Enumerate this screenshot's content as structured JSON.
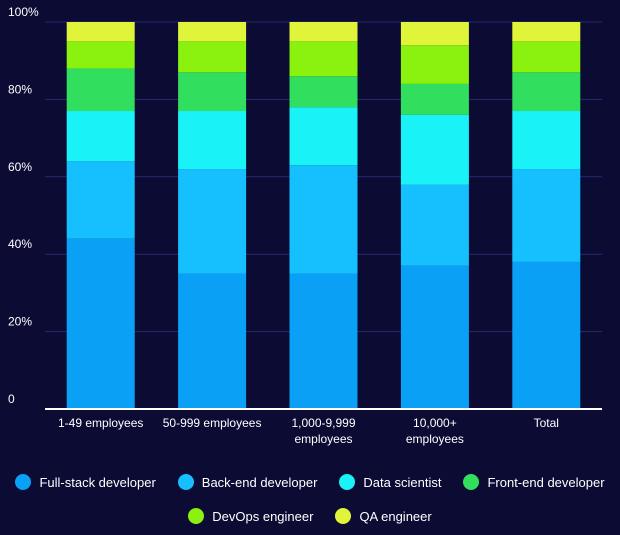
{
  "chart_data": {
    "type": "bar",
    "stacked": true,
    "categories": [
      [
        "1-49 employees"
      ],
      [
        "50-999 employees"
      ],
      [
        "1,000-9,999",
        "employees"
      ],
      [
        "10,000+",
        "employees"
      ],
      [
        "Total"
      ]
    ],
    "series": [
      {
        "name": "Full-stack developer",
        "color": "#0aa0f5",
        "values": [
          44,
          35,
          35,
          37,
          38
        ]
      },
      {
        "name": "Back-end developer",
        "color": "#16c0ff",
        "values": [
          20,
          27,
          28,
          21,
          24
        ]
      },
      {
        "name": "Data scientist",
        "color": "#19f2f7",
        "values": [
          13,
          15,
          15,
          18,
          15
        ]
      },
      {
        "name": "Front-end developer",
        "color": "#32de5e",
        "values": [
          11,
          10,
          8,
          8,
          10
        ]
      },
      {
        "name": "DevOps engineer",
        "color": "#8af20e",
        "values": [
          7,
          8,
          9,
          10,
          8
        ]
      },
      {
        "name": "QA engineer",
        "color": "#e0f43a",
        "values": [
          5,
          5,
          5,
          6,
          5
        ]
      }
    ],
    "yticks": [
      "0",
      "20%",
      "40%",
      "60%",
      "80%",
      "100%"
    ],
    "ylim": [
      0,
      100
    ],
    "grid": true,
    "legend_position": "bottom"
  }
}
